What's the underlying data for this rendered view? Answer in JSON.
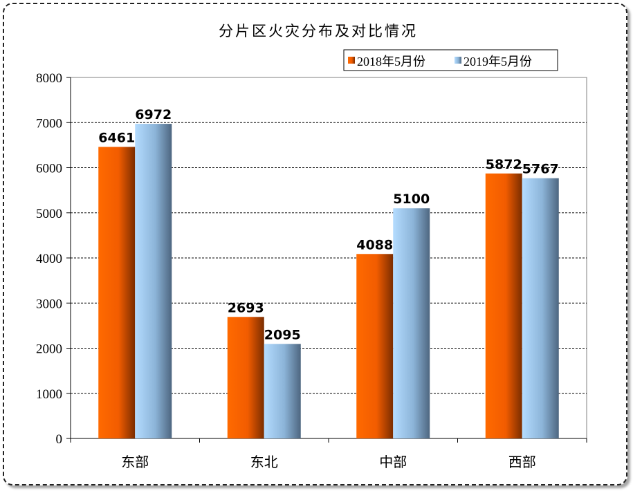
{
  "chart_data": {
    "type": "bar",
    "title": "分片区火灾分布及对比情况",
    "categories": [
      "东部",
      "东北",
      "中部",
      "西部"
    ],
    "series": [
      {
        "name": "2018年5月份",
        "values": [
          6461,
          2693,
          4088,
          5872
        ],
        "color": "#ff6600"
      },
      {
        "name": "2019年5月份",
        "values": [
          6972,
          2095,
          5100,
          5767
        ],
        "color": "#99ccff"
      }
    ],
    "xlabel": "",
    "ylabel": "",
    "ylim": [
      0,
      8000
    ],
    "yticks": [
      "0",
      "1000",
      "2000",
      "3000",
      "4000",
      "5000",
      "6000",
      "7000",
      "8000"
    ],
    "grid": true,
    "legend_position": "top-right",
    "data_labels": true
  }
}
